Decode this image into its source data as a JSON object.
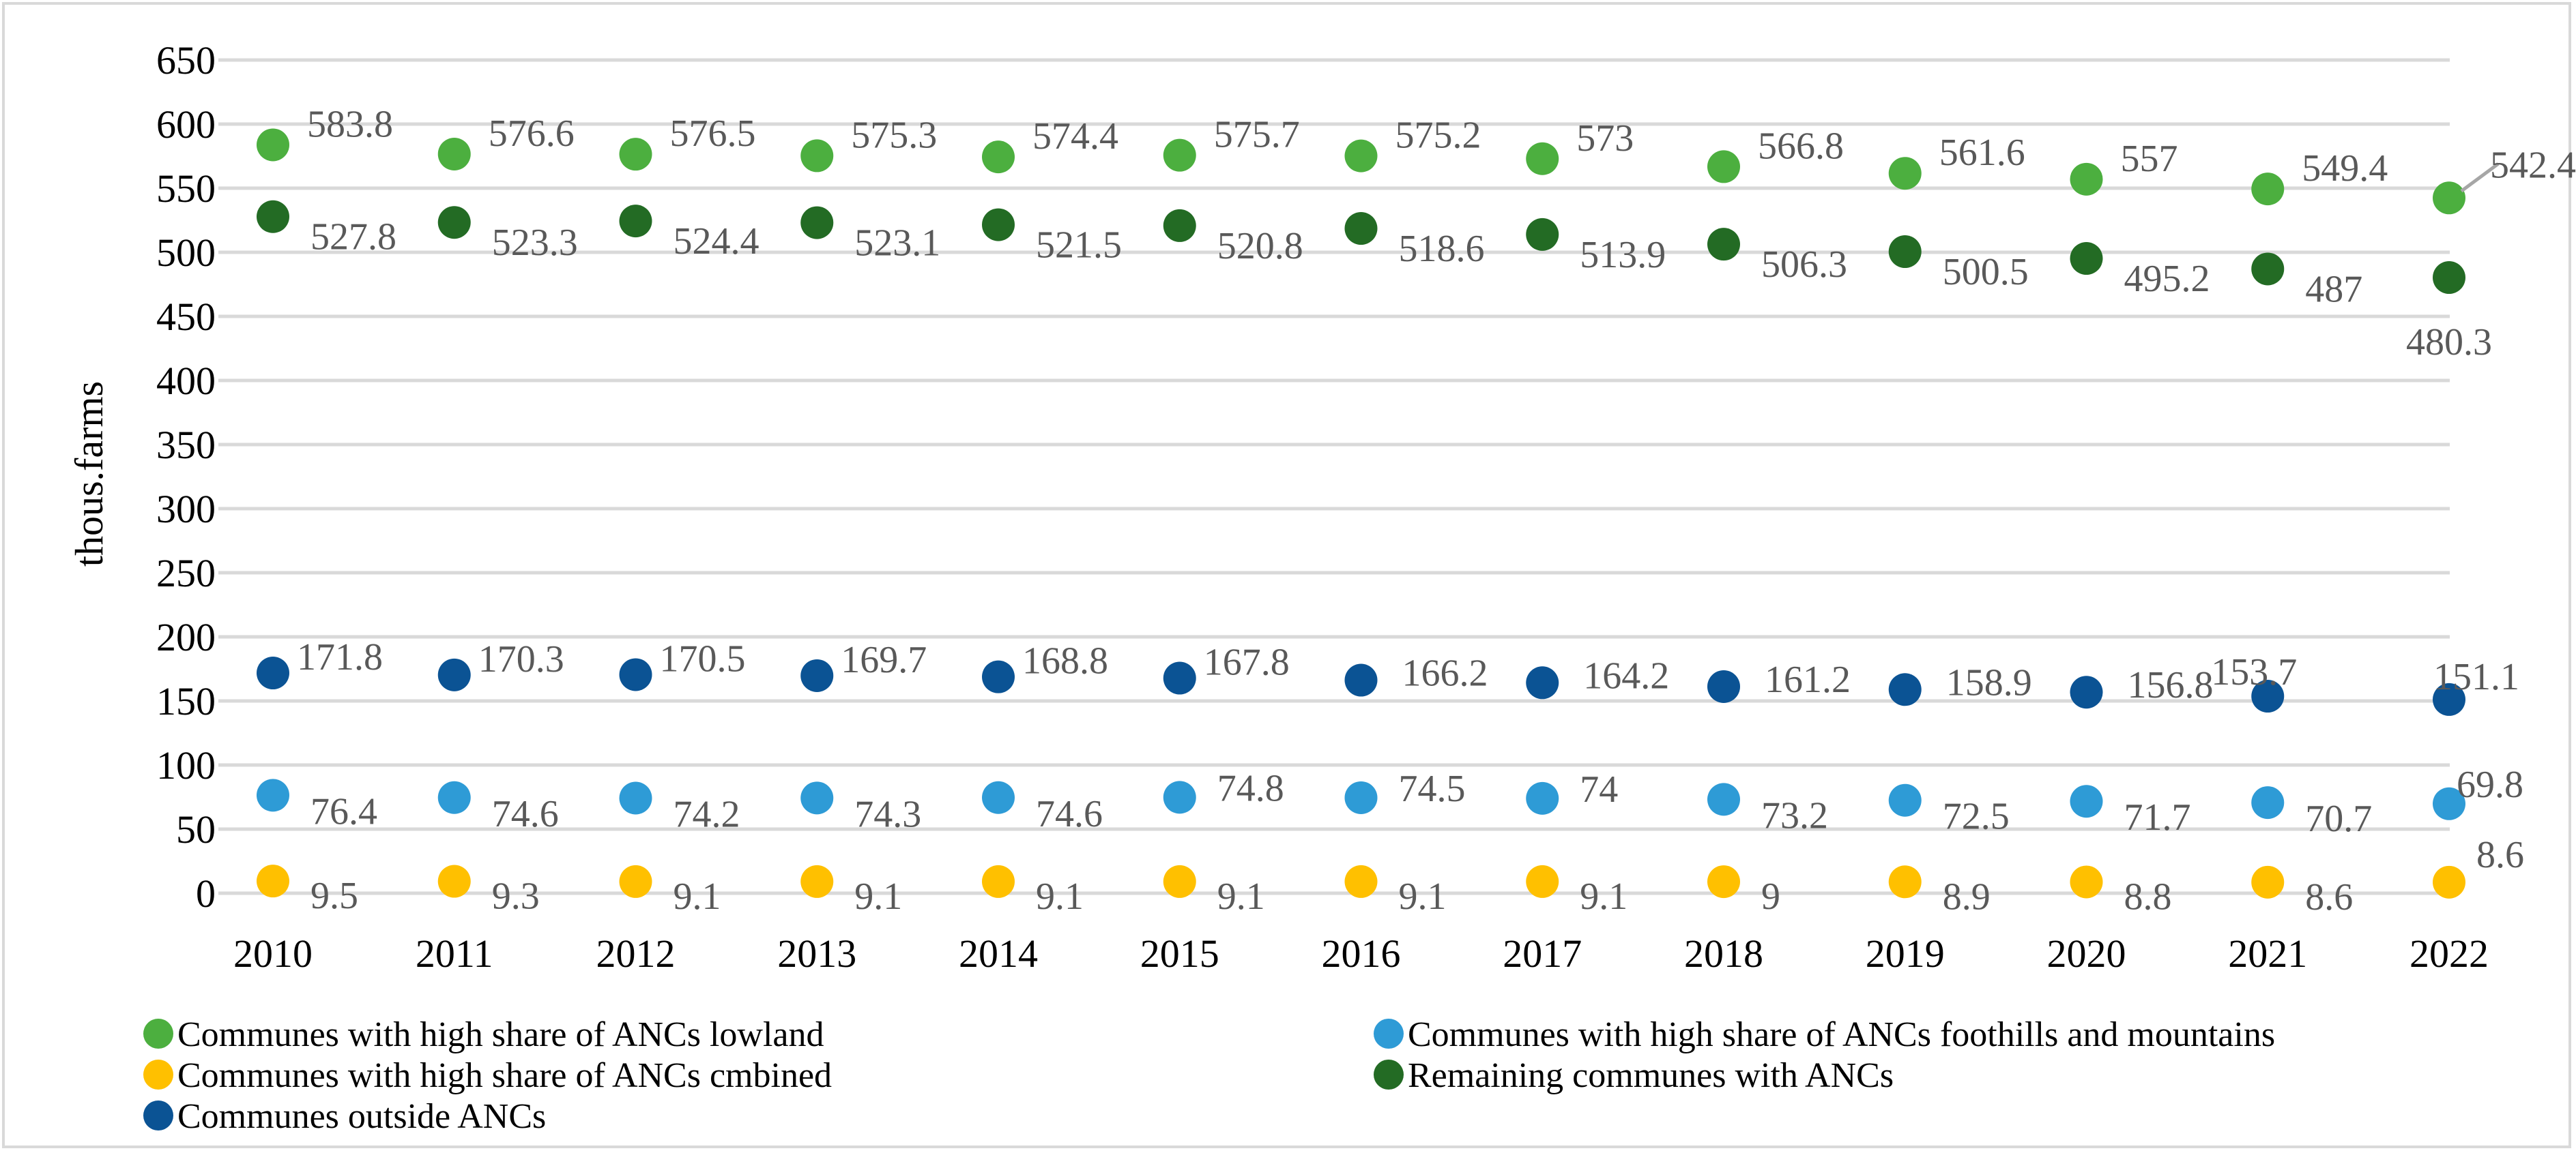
{
  "chart_data": {
    "type": "scatter",
    "title": "",
    "xlabel": "",
    "ylabel": "thous.farms",
    "ylim": [
      0,
      650
    ],
    "ytick_step": 50,
    "grid": true,
    "legend_position": "bottom",
    "x": [
      "2010",
      "2011",
      "2012",
      "2013",
      "2014",
      "2015",
      "2016",
      "2017",
      "2018",
      "2019",
      "2020",
      "2021",
      "2022"
    ],
    "series": [
      {
        "name": "Communes with high share of ANCs lowland",
        "color": "#4caf3f",
        "values": [
          583.8,
          576.6,
          576.5,
          575.3,
          574.4,
          575.7,
          575.2,
          573,
          566.8,
          561.6,
          557,
          549.4,
          542.4
        ]
      },
      {
        "name": "Communes with  high share of ANCs foothills and mountains",
        "color": "#2e9bd6",
        "values": [
          76.4,
          74.6,
          74.2,
          74.3,
          74.6,
          74.8,
          74.5,
          74,
          73.2,
          72.5,
          71.7,
          70.7,
          69.8
        ]
      },
      {
        "name": "Communes with  high share of ANCs cmbined",
        "color": "#ffc000",
        "values": [
          9.5,
          9.3,
          9.1,
          9.1,
          9.1,
          9.1,
          9.1,
          9.1,
          9,
          8.9,
          8.8,
          8.6,
          8.6
        ]
      },
      {
        "name": "Remaining communes with ANCs",
        "color": "#236b24",
        "values": [
          527.8,
          523.3,
          524.4,
          523.1,
          521.5,
          520.8,
          518.6,
          513.9,
          506.3,
          500.5,
          495.2,
          487,
          480.3
        ]
      },
      {
        "name": "Communes outside ANCs",
        "color": "#0b5394",
        "values": [
          171.8,
          170.3,
          170.5,
          169.7,
          168.8,
          167.8,
          166.2,
          164.2,
          161.2,
          158.9,
          156.8,
          153.7,
          151.1
        ]
      }
    ]
  }
}
